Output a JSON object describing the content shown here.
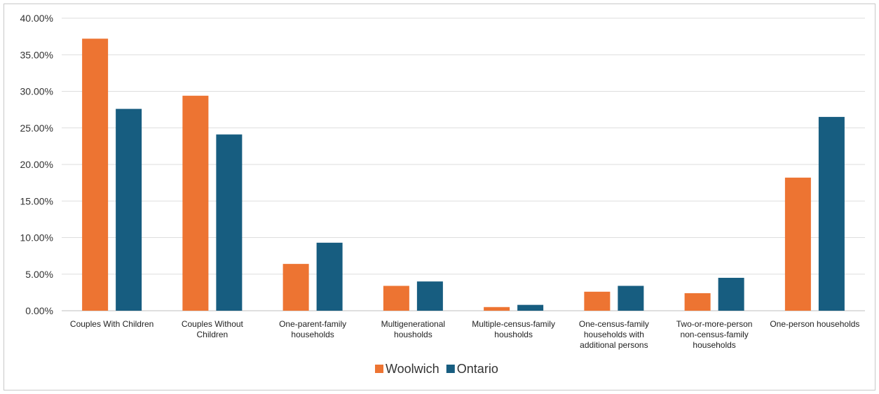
{
  "chart_data": {
    "type": "bar",
    "categories": [
      [
        "Couples With Children"
      ],
      [
        "Couples Without",
        "Children"
      ],
      [
        "One-parent-family",
        "households"
      ],
      [
        "Multigenerational",
        "housholds"
      ],
      [
        "Multiple-census-family",
        "housholds"
      ],
      [
        "One-census-family",
        "households with",
        "additional persons"
      ],
      [
        "Two-or-more-person",
        "non-census-family",
        "households"
      ],
      [
        "One-person households"
      ]
    ],
    "series": [
      {
        "name": "Woolwich",
        "color": "#ed7432",
        "values": [
          37.2,
          29.4,
          6.4,
          3.4,
          0.5,
          2.6,
          2.4,
          18.2
        ]
      },
      {
        "name": "Ontario",
        "color": "#175d80",
        "values": [
          27.6,
          24.1,
          9.3,
          4.0,
          0.8,
          3.4,
          4.5,
          26.5
        ]
      }
    ],
    "yticks": [
      "0.00%",
      "5.00%",
      "10.00%",
      "15.00%",
      "20.00%",
      "25.00%",
      "30.00%",
      "35.00%",
      "40.00%"
    ],
    "ylim": [
      0,
      40
    ],
    "grid": true,
    "legend_position": "bottom"
  }
}
